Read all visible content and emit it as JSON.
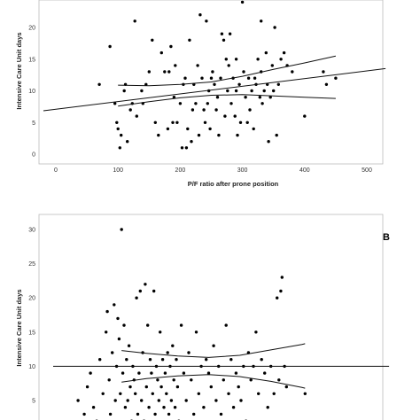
{
  "chart_data": [
    {
      "type": "scatter",
      "panel_label": "",
      "xlabel": "P/F ratio after prone position",
      "ylabel": "Intensive Care Unit days",
      "xlim": [
        -20,
        530
      ],
      "ylim": [
        -1,
        24
      ],
      "x_ticks": [
        0,
        100,
        200,
        300,
        400,
        500
      ],
      "y_ticks": [
        0,
        5,
        10,
        15,
        20
      ],
      "grid": false,
      "points": [
        [
          70,
          11
        ],
        [
          87,
          17
        ],
        [
          95,
          8
        ],
        [
          98,
          5
        ],
        [
          100,
          4
        ],
        [
          103,
          1
        ],
        [
          105,
          3
        ],
        [
          110,
          10
        ],
        [
          112,
          11
        ],
        [
          115,
          2
        ],
        [
          120,
          7
        ],
        [
          123,
          8
        ],
        [
          127,
          21
        ],
        [
          130,
          6
        ],
        [
          138,
          10
        ],
        [
          140,
          8
        ],
        [
          145,
          11
        ],
        [
          150,
          13
        ],
        [
          155,
          18
        ],
        [
          160,
          5
        ],
        [
          165,
          3
        ],
        [
          170,
          16
        ],
        [
          175,
          13
        ],
        [
          180,
          4
        ],
        [
          182,
          13
        ],
        [
          185,
          17
        ],
        [
          188,
          5
        ],
        [
          190,
          9
        ],
        [
          192,
          14
        ],
        [
          195,
          5
        ],
        [
          200,
          8
        ],
        [
          203,
          1
        ],
        [
          205,
          11
        ],
        [
          208,
          12
        ],
        [
          210,
          1
        ],
        [
          212,
          4
        ],
        [
          215,
          18
        ],
        [
          218,
          2
        ],
        [
          220,
          7
        ],
        [
          222,
          11
        ],
        [
          225,
          8
        ],
        [
          228,
          14
        ],
        [
          230,
          3
        ],
        [
          232,
          22
        ],
        [
          235,
          12
        ],
        [
          238,
          7
        ],
        [
          240,
          5
        ],
        [
          242,
          21
        ],
        [
          244,
          8
        ],
        [
          246,
          10
        ],
        [
          248,
          4
        ],
        [
          250,
          12
        ],
        [
          252,
          13
        ],
        [
          255,
          11
        ],
        [
          258,
          7
        ],
        [
          260,
          9
        ],
        [
          262,
          3
        ],
        [
          265,
          12
        ],
        [
          267,
          19
        ],
        [
          270,
          18
        ],
        [
          272,
          6
        ],
        [
          274,
          15
        ],
        [
          276,
          10
        ],
        [
          278,
          14
        ],
        [
          280,
          19
        ],
        [
          282,
          8
        ],
        [
          285,
          12
        ],
        [
          288,
          6
        ],
        [
          290,
          10
        ],
        [
          292,
          3
        ],
        [
          295,
          11
        ],
        [
          297,
          5
        ],
        [
          300,
          24
        ],
        [
          302,
          13
        ],
        [
          305,
          9
        ],
        [
          308,
          5
        ],
        [
          310,
          12
        ],
        [
          312,
          7
        ],
        [
          315,
          10
        ],
        [
          318,
          4
        ],
        [
          320,
          12
        ],
        [
          322,
          11
        ],
        [
          325,
          15
        ],
        [
          328,
          9
        ],
        [
          330,
          13
        ],
        [
          332,
          8
        ],
        [
          335,
          10
        ],
        [
          338,
          16
        ],
        [
          340,
          11
        ],
        [
          342,
          2
        ],
        [
          345,
          9
        ],
        [
          348,
          14
        ],
        [
          350,
          10
        ],
        [
          352,
          20
        ],
        [
          355,
          3
        ],
        [
          358,
          11
        ],
        [
          362,
          15
        ],
        [
          367,
          16
        ],
        [
          372,
          14
        ],
        [
          380,
          13
        ],
        [
          400,
          6
        ],
        [
          430,
          13
        ],
        [
          435,
          11
        ],
        [
          450,
          12
        ],
        [
          330,
          21
        ],
        [
          290,
          15
        ]
      ],
      "fit_line": {
        "slope": 0.0121,
        "intercept": 7.1
      },
      "ci_upper": [
        [
          100,
          10.9
        ],
        [
          150,
          10.8
        ],
        [
          200,
          11.0
        ],
        [
          250,
          11.4
        ],
        [
          300,
          12.3
        ],
        [
          350,
          13.4
        ],
        [
          400,
          14.4
        ],
        [
          450,
          15.5
        ]
      ],
      "ci_lower": [
        [
          100,
          7.6
        ],
        [
          150,
          8.3
        ],
        [
          200,
          8.9
        ],
        [
          250,
          9.3
        ],
        [
          300,
          9.4
        ],
        [
          350,
          9.2
        ],
        [
          400,
          9.0
        ],
        [
          450,
          8.8
        ]
      ]
    },
    {
      "type": "scatter",
      "panel_label": "B",
      "xlabel": "",
      "ylabel": "Intensive Care Unit days",
      "xlim": [
        0,
        540
      ],
      "ylim": [
        0,
        32
      ],
      "y_ticks": [
        5,
        10,
        15,
        20,
        25,
        30
      ],
      "grid": false,
      "points": [
        [
          40,
          5
        ],
        [
          50,
          3
        ],
        [
          55,
          7
        ],
        [
          60,
          9
        ],
        [
          65,
          4
        ],
        [
          70,
          2
        ],
        [
          75,
          11
        ],
        [
          80,
          6
        ],
        [
          85,
          15
        ],
        [
          87,
          18
        ],
        [
          90,
          8
        ],
        [
          92,
          3
        ],
        [
          95,
          12
        ],
        [
          98,
          19
        ],
        [
          100,
          5
        ],
        [
          102,
          10
        ],
        [
          104,
          17
        ],
        [
          106,
          14
        ],
        [
          108,
          6
        ],
        [
          110,
          30
        ],
        [
          112,
          9
        ],
        [
          114,
          16
        ],
        [
          116,
          4
        ],
        [
          118,
          11
        ],
        [
          120,
          5
        ],
        [
          122,
          13
        ],
        [
          124,
          7
        ],
        [
          126,
          2
        ],
        [
          128,
          10
        ],
        [
          130,
          8
        ],
        [
          132,
          6
        ],
        [
          134,
          20
        ],
        [
          136,
          3
        ],
        [
          138,
          9
        ],
        [
          140,
          21
        ],
        [
          142,
          5
        ],
        [
          144,
          12
        ],
        [
          146,
          2
        ],
        [
          148,
          22
        ],
        [
          150,
          7
        ],
        [
          152,
          16
        ],
        [
          154,
          4
        ],
        [
          156,
          11
        ],
        [
          158,
          9
        ],
        [
          160,
          6
        ],
        [
          162,
          21
        ],
        [
          164,
          3
        ],
        [
          166,
          10
        ],
        [
          168,
          8
        ],
        [
          170,
          5
        ],
        [
          172,
          15
        ],
        [
          174,
          7
        ],
        [
          176,
          11
        ],
        [
          178,
          4
        ],
        [
          180,
          9
        ],
        [
          182,
          6
        ],
        [
          184,
          12
        ],
        [
          186,
          3
        ],
        [
          188,
          10
        ],
        [
          190,
          5
        ],
        [
          192,
          13
        ],
        [
          194,
          8
        ],
        [
          196,
          4
        ],
        [
          198,
          11
        ],
        [
          200,
          7
        ],
        [
          202,
          2
        ],
        [
          206,
          16
        ],
        [
          210,
          9
        ],
        [
          214,
          5
        ],
        [
          218,
          12
        ],
        [
          222,
          8
        ],
        [
          226,
          3
        ],
        [
          230,
          15
        ],
        [
          234,
          6
        ],
        [
          238,
          10
        ],
        [
          242,
          4
        ],
        [
          246,
          11
        ],
        [
          250,
          9
        ],
        [
          254,
          7
        ],
        [
          258,
          13
        ],
        [
          262,
          5
        ],
        [
          266,
          10
        ],
        [
          270,
          3
        ],
        [
          274,
          8
        ],
        [
          278,
          16
        ],
        [
          282,
          6
        ],
        [
          286,
          11
        ],
        [
          290,
          4
        ],
        [
          294,
          9
        ],
        [
          298,
          7
        ],
        [
          302,
          5
        ],
        [
          306,
          10
        ],
        [
          310,
          2
        ],
        [
          314,
          12
        ],
        [
          318,
          8
        ],
        [
          322,
          10
        ],
        [
          326,
          15
        ],
        [
          330,
          6
        ],
        [
          335,
          11
        ],
        [
          340,
          9
        ],
        [
          345,
          4
        ],
        [
          350,
          10
        ],
        [
          355,
          6
        ],
        [
          360,
          20
        ],
        [
          363,
          8
        ],
        [
          366,
          21
        ],
        [
          368,
          23
        ],
        [
          372,
          10
        ],
        [
          375,
          7
        ],
        [
          405,
          6
        ]
      ],
      "fit_line": {
        "slope": 0,
        "intercept": 10
      },
      "ci_upper": [
        [
          110,
          12.3
        ],
        [
          150,
          11.9
        ],
        [
          200,
          11.5
        ],
        [
          250,
          11.3
        ],
        [
          300,
          11.6
        ],
        [
          350,
          12.4
        ],
        [
          400,
          13.2
        ],
        [
          405,
          13.3
        ]
      ],
      "ci_lower": [
        [
          110,
          7.7
        ],
        [
          150,
          8.2
        ],
        [
          200,
          8.6
        ],
        [
          250,
          8.8
        ],
        [
          300,
          8.5
        ],
        [
          350,
          7.8
        ],
        [
          400,
          6.9
        ],
        [
          405,
          6.8
        ]
      ]
    }
  ]
}
